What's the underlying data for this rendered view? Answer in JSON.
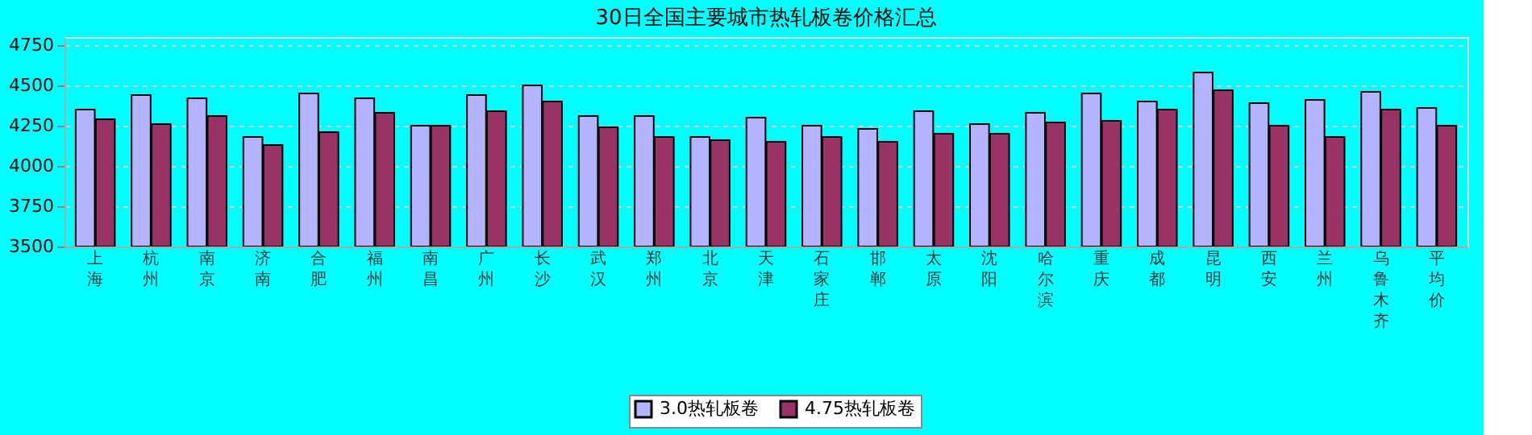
{
  "chart_data": {
    "type": "bar",
    "title": "30日全国主要城市热轧板卷价格汇总",
    "categories": [
      "上海",
      "杭州",
      "南京",
      "济南",
      "合肥",
      "福州",
      "南昌",
      "广州",
      "长沙",
      "武汉",
      "郑州",
      "北京",
      "天津",
      "石家庄",
      "邯郸",
      "太原",
      "沈阳",
      "哈尔滨",
      "重庆",
      "成都",
      "昆明",
      "西安",
      "兰州",
      "乌鲁木齐",
      "平均价"
    ],
    "series": [
      {
        "name": "3.0热轧板卷",
        "color": "#b3b3ff",
        "values": [
          4350,
          4440,
          4420,
          4180,
          4450,
          4420,
          4250,
          4440,
          4500,
          4310,
          4310,
          4180,
          4300,
          4250,
          4230,
          4340,
          4260,
          4330,
          4450,
          4400,
          4580,
          4390,
          4410,
          4460,
          4360
        ]
      },
      {
        "name": "4.75热轧板卷",
        "color": "#993366",
        "values": [
          4290,
          4260,
          4310,
          4130,
          4210,
          4330,
          4250,
          4340,
          4400,
          4240,
          4180,
          4160,
          4150,
          4180,
          4150,
          4200,
          4200,
          4270,
          4280,
          4350,
          4470,
          4250,
          4180,
          4350,
          4250
        ]
      }
    ],
    "ylim": [
      3500,
      4800
    ],
    "yticks": [
      3500,
      3750,
      4000,
      4250,
      4500,
      4750
    ],
    "grid": "y",
    "line_style": "dashed",
    "legend": "bottom"
  }
}
